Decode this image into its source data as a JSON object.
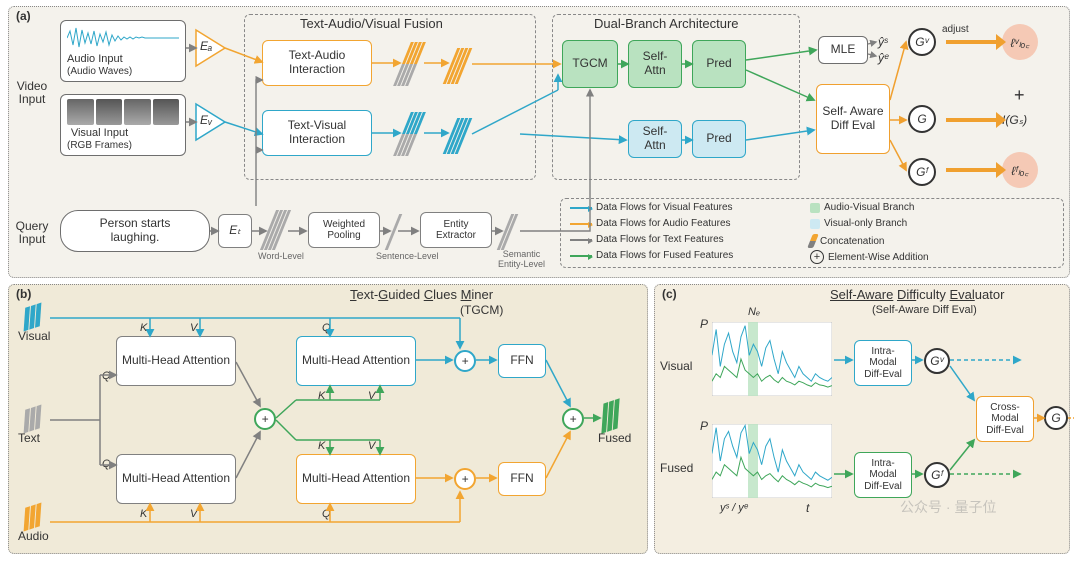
{
  "colors": {
    "orange": "#f2a531",
    "visual": "#2fa7c9",
    "text_gray": "#808080",
    "fused": "#3fa65a",
    "fused_fill": "#b9e2c0",
    "visual_fill": "#cde9f2",
    "orange_fill": "#fce9cc",
    "strong_orange": "#f0a02f",
    "loss_fill": "#f5c9b5",
    "panel_a_bg": "#f4f2ec",
    "panel_b_bg": "#f0ead8",
    "panel_c_bg": "#f4eee1",
    "dashed": "#6e6e6e",
    "node_border": "#6e6e6e"
  },
  "panel_a": {
    "tag": "(a)",
    "video_input": "Video\nInput",
    "query_input": "Query\nInput",
    "audio_title": "Audio Input",
    "audio_sub": "(Audio Waves)",
    "visual_title": "Visual Input",
    "visual_sub": "(RGB Frames)",
    "query": "Person starts\nlaughing.",
    "ea": "Eₐ",
    "ev": "Eᵥ",
    "et": "Eₜ",
    "fusion_title": "Text-Audio/Visual Fusion",
    "ta_interaction": "Text-Audio\nInteraction",
    "tv_interaction": "Text-Visual\nInteraction",
    "dual_title": "Dual-Branch Architecture",
    "tgcm": "TGCM",
    "self_attn1": "Self-\nAttn",
    "pred1": "Pred",
    "self_attn2": "Self-\nAttn",
    "pred2": "Pred",
    "mle": "MLE",
    "yhat_s": "ŷˢ",
    "yhat_e": "ŷᵉ",
    "saeval": "Self-\nAware\nDiff Eval",
    "gv": "Gᵛ",
    "g": "G",
    "gf": "Gᶠ",
    "adjust": "adjust",
    "loss_v": "ℓᵛₗₒ꜀",
    "loss_f": "ℓᶠₗₒ꜀",
    "plus": "+",
    "ig": "I(Gₛ)",
    "word_level": "Word-Level",
    "weighted_pooling": "Weighted\nPooling",
    "sentence_level": "Sentence-Level",
    "entity_extractor": "Entity\nExtractor",
    "entity_level": "Semantic\nEntity-Level",
    "legend": {
      "l1": "Data Flows for Visual Features",
      "l2": "Data Flows for Audio Features",
      "l3": "Data Flows for Text  Features",
      "l4": "Data Flows for Fused Features",
      "r1": "Audio-Visual Branch",
      "r2": "Visual-only Branch",
      "r3": "Concatenation",
      "r4": "Element-Wise Addition"
    }
  },
  "panel_b": {
    "tag": "(b)",
    "title": "Text-Guided Clues Miner",
    "sub": "(TGCM)",
    "visual": "Visual",
    "text": "Text",
    "audio": "Audio",
    "mha": "Multi-Head\nAttention",
    "ffn": "FFN",
    "fused": "Fused",
    "q": "Q",
    "k": "K",
    "v": "V"
  },
  "panel_c": {
    "tag": "(c)",
    "title": "Self-Aware Difficulty Evaluator",
    "sub": "(Self-Aware Diff Eval)",
    "visual": "Visual",
    "fused": "Fused",
    "p_axis": "P",
    "t_axis": "t",
    "ne": "Nₑ",
    "ys_ye": "yˢ / yᵉ",
    "intra1": "Intra-\nModal\nDiff-Eval",
    "intra2": "Intra-\nModal\nDiff-Eval",
    "cross": "Cross-\nModal\nDiff-Eval",
    "gv": "Gᵛ",
    "gf": "Gᶠ",
    "g": "G"
  },
  "plots": {
    "visual_series_a": [
      0.55,
      0.9,
      0.4,
      0.7,
      0.85,
      0.6,
      0.45,
      0.8,
      0.95,
      0.55,
      0.7,
      0.6,
      0.4,
      0.65,
      0.75,
      0.5,
      0.3,
      0.6,
      0.45,
      0.35,
      0.25,
      0.4,
      0.3,
      0.25,
      0.2,
      0.3,
      0.25,
      0.22,
      0.2,
      0.25
    ],
    "visual_series_b": [
      0.2,
      0.3,
      0.25,
      0.4,
      0.35,
      0.3,
      0.25,
      0.5,
      0.35,
      0.3,
      0.25,
      0.3,
      0.2,
      0.25,
      0.28,
      0.22,
      0.18,
      0.25,
      0.2,
      0.18,
      0.15,
      0.2,
      0.18,
      0.15,
      0.13,
      0.18,
      0.15,
      0.14,
      0.12,
      0.14
    ],
    "fused_series_a": [
      0.6,
      0.95,
      0.5,
      0.8,
      0.9,
      0.7,
      0.55,
      0.88,
      0.98,
      0.6,
      0.75,
      0.65,
      0.45,
      0.7,
      0.8,
      0.55,
      0.35,
      0.65,
      0.5,
      0.4,
      0.3,
      0.45,
      0.35,
      0.3,
      0.25,
      0.35,
      0.3,
      0.27,
      0.24,
      0.28
    ],
    "fused_series_b": [
      0.25,
      0.35,
      0.3,
      0.45,
      0.4,
      0.35,
      0.3,
      0.55,
      0.4,
      0.35,
      0.3,
      0.35,
      0.25,
      0.3,
      0.33,
      0.27,
      0.22,
      0.3,
      0.25,
      0.22,
      0.18,
      0.23,
      0.2,
      0.18,
      0.15,
      0.2,
      0.17,
      0.16,
      0.14,
      0.16
    ]
  },
  "watermark": "公众号 · 量子位"
}
